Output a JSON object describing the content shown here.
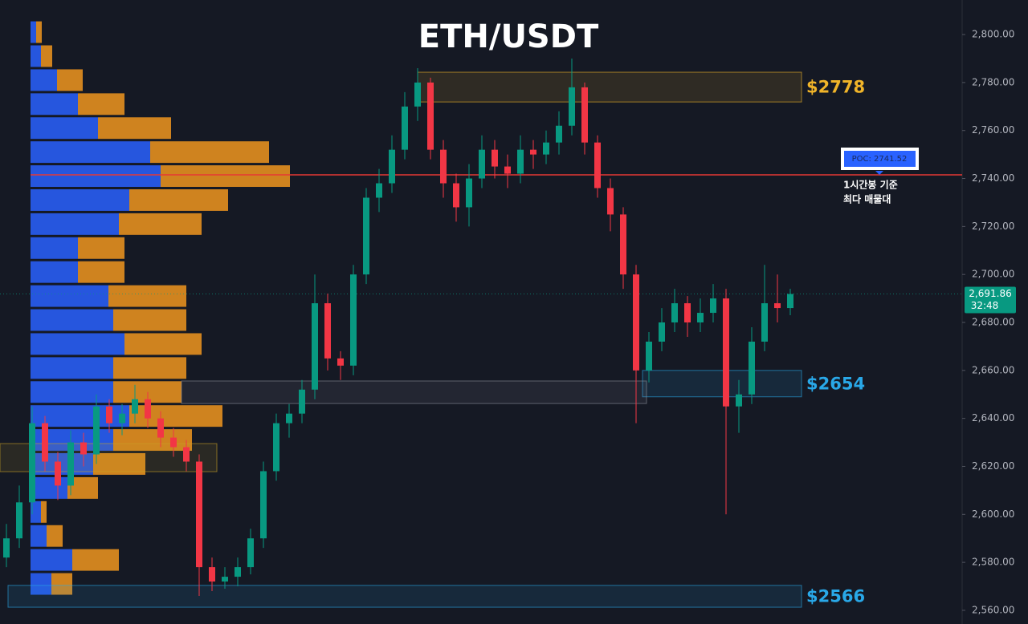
{
  "chart_data": {
    "type": "candlestick",
    "title": "ETH/USDT",
    "ylim": [
      2554.3,
      2814.4
    ],
    "yticks": [
      {
        "value": 2560,
        "label": "2,560.00"
      },
      {
        "value": 2580,
        "label": "2,580.00"
      },
      {
        "value": 2600,
        "label": "2,600.00"
      },
      {
        "value": 2620,
        "label": "2,620.00"
      },
      {
        "value": 2640,
        "label": "2,640.00"
      },
      {
        "value": 2660,
        "label": "2,660.00"
      },
      {
        "value": 2680,
        "label": "2,680.00"
      },
      {
        "value": 2700,
        "label": "2,700.00"
      },
      {
        "value": 2720,
        "label": "2,720.00"
      },
      {
        "value": 2740,
        "label": "2,740.00"
      },
      {
        "value": 2760,
        "label": "2,760.00"
      },
      {
        "value": 2780,
        "label": "2,780.00"
      },
      {
        "value": 2800,
        "label": "2,800.00"
      }
    ],
    "grid": false,
    "up_color": "#089981",
    "down_color": "#f23645",
    "open": [
      2582,
      2590,
      2605,
      2638,
      2622,
      2612,
      2630,
      2625,
      2645,
      2638,
      2642,
      2648,
      2640,
      2632,
      2628,
      2622,
      2578,
      2572,
      2574,
      2578,
      2590,
      2618,
      2638,
      2642,
      2652,
      2688,
      2665,
      2662,
      2700,
      2732,
      2738,
      2752,
      2770,
      2780,
      2752,
      2738,
      2728,
      2740,
      2752,
      2745,
      2742,
      2752,
      2750,
      2755,
      2762,
      2778,
      2755,
      2736,
      2725,
      2700,
      2660,
      2672,
      2680,
      2688,
      2680,
      2684,
      2690,
      2645,
      2650,
      2672,
      2688,
      2686
    ],
    "high": [
      2596,
      2612,
      2645,
      2641,
      2626,
      2635,
      2634,
      2650,
      2648,
      2646,
      2654,
      2651,
      2643,
      2636,
      2631,
      2625,
      2582,
      2578,
      2582,
      2594,
      2622,
      2642,
      2646,
      2656,
      2700,
      2692,
      2668,
      2704,
      2736,
      2744,
      2758,
      2776,
      2786,
      2782,
      2756,
      2742,
      2746,
      2758,
      2756,
      2750,
      2758,
      2756,
      2760,
      2768,
      2790,
      2780,
      2758,
      2740,
      2728,
      2704,
      2676,
      2686,
      2694,
      2691,
      2690,
      2696,
      2694,
      2656,
      2678,
      2704,
      2700,
      2694
    ],
    "low": [
      2578,
      2586,
      2600,
      2618,
      2606,
      2608,
      2620,
      2621,
      2634,
      2633,
      2638,
      2636,
      2628,
      2624,
      2618,
      2566,
      2568,
      2569,
      2570,
      2575,
      2586,
      2614,
      2632,
      2638,
      2648,
      2660,
      2656,
      2658,
      2696,
      2726,
      2734,
      2748,
      2764,
      2748,
      2732,
      2722,
      2720,
      2736,
      2740,
      2736,
      2738,
      2744,
      2746,
      2750,
      2758,
      2750,
      2732,
      2718,
      2694,
      2638,
      2655,
      2668,
      2676,
      2674,
      2676,
      2680,
      2600,
      2634,
      2646,
      2668,
      2680,
      2683
    ],
    "close": [
      2590,
      2605,
      2638,
      2622,
      2612,
      2630,
      2625,
      2645,
      2638,
      2642,
      2648,
      2640,
      2632,
      2628,
      2622,
      2578,
      2572,
      2574,
      2578,
      2590,
      2618,
      2638,
      2642,
      2652,
      2688,
      2665,
      2662,
      2700,
      2732,
      2738,
      2752,
      2770,
      2780,
      2752,
      2738,
      2728,
      2740,
      2752,
      2745,
      2742,
      2752,
      2750,
      2755,
      2762,
      2778,
      2755,
      2736,
      2725,
      2700,
      2660,
      2672,
      2680,
      2688,
      2680,
      2684,
      2690,
      2645,
      2650,
      2672,
      2688,
      2686,
      2691.86
    ],
    "profile": {
      "bins": [
        2806,
        2796,
        2786,
        2776,
        2766,
        2756,
        2746,
        2736,
        2726,
        2716,
        2706,
        2696,
        2686,
        2676,
        2666,
        2656,
        2646,
        2636,
        2626,
        2616,
        2606,
        2596,
        2586,
        2576,
        2566
      ],
      "buy": [
        7,
        13,
        33,
        59,
        84,
        149,
        162,
        123,
        110,
        59,
        59,
        97,
        103,
        117,
        103,
        103,
        123,
        103,
        78,
        46,
        13,
        20,
        52,
        26
      ],
      "sell": [
        7,
        14,
        32,
        58,
        91,
        148,
        161,
        123,
        103,
        58,
        58,
        97,
        91,
        96,
        91,
        85,
        116,
        98,
        65,
        38,
        7,
        20,
        58,
        26
      ],
      "buy_color": "#2962ff",
      "sell_color": "#f0961e"
    },
    "zones": [
      {
        "low": 2771.9,
        "high": 2784.3,
        "label": "$2778",
        "color": "#f0b429"
      },
      {
        "low": 2649.0,
        "high": 2660.0,
        "label": "$2654",
        "color": "#29a8e8"
      },
      {
        "low": 2646.2,
        "high": 2655.6,
        "color": "#8a8f99"
      },
      {
        "low": 2561.3,
        "high": 2570.4,
        "label": "$2566",
        "color": "#29a8e8"
      },
      {
        "low": 2617.8,
        "high": 2629.5,
        "color": "#c9a227"
      }
    ],
    "poc": {
      "value": 2741.52,
      "label": "POC: 2741.52",
      "color": "#e53935"
    },
    "annotation": [
      "1시간봉 기준",
      "최다 매물대"
    ],
    "last_price": {
      "value": 2691.86,
      "label": "2,691.86"
    },
    "countdown": "32:48"
  }
}
